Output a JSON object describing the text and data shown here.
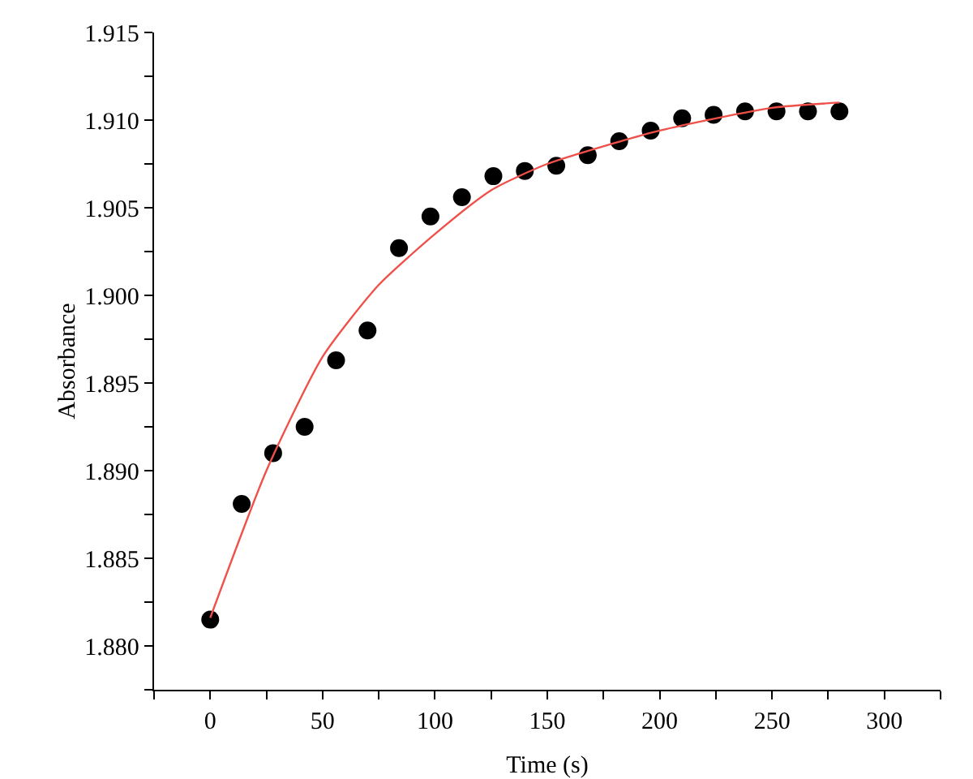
{
  "chart_data": {
    "type": "scatter",
    "xlabel": "Time (s)",
    "ylabel": "Absorbance",
    "xlim": [
      -25,
      325
    ],
    "ylim": [
      1.8775,
      1.915
    ],
    "xticks": [
      {
        "value": -25,
        "label": null
      },
      0,
      {
        "value": 25,
        "label": null
      },
      50,
      {
        "value": 75,
        "label": null
      },
      100,
      {
        "value": 125,
        "label": null
      },
      150,
      {
        "value": 175,
        "label": null
      },
      200,
      {
        "value": 225,
        "label": null
      },
      250,
      {
        "value": 275,
        "label": null
      },
      300,
      {
        "value": 325,
        "label": null
      }
    ],
    "yticks": [
      {
        "value": 1.8775,
        "label": null
      },
      {
        "value": 1.88,
        "label": "1.880"
      },
      {
        "value": 1.8825,
        "label": null
      },
      1.885,
      {
        "value": 1.8875,
        "label": null
      },
      {
        "value": 1.89,
        "label": "1.890"
      },
      {
        "value": 1.8925,
        "label": null
      },
      1.895,
      {
        "value": 1.8975,
        "label": null
      },
      {
        "value": 1.9,
        "label": "1.900"
      },
      {
        "value": 1.9025,
        "label": null
      },
      1.905,
      {
        "value": 1.9075,
        "label": null
      },
      {
        "value": 1.91,
        "label": "1.910"
      },
      {
        "value": 1.9125,
        "label": null
      },
      1.915
    ],
    "grid": false,
    "legend": false,
    "marker": "circle",
    "series": [
      {
        "color": "#000000",
        "x": [
          0,
          14,
          28,
          42,
          56,
          70,
          84,
          98,
          112,
          126,
          140,
          154,
          168,
          182,
          196,
          210,
          224,
          238,
          252,
          266,
          280
        ],
        "values": [
          1.8815,
          1.8881,
          1.891,
          1.8925,
          1.8963,
          1.898,
          1.9027,
          1.9045,
          1.9056,
          1.9068,
          1.9071,
          1.9074,
          1.908,
          1.9088,
          1.9094,
          1.9101,
          1.9103,
          1.9105,
          1.9105,
          1.9105,
          1.9105
        ]
      },
      {
        "type": "line",
        "color": "#f0504a",
        "line_style": "solid",
        "marker": "none",
        "x": [
          0,
          25,
          50,
          75,
          100,
          125,
          150,
          200,
          250,
          280
        ],
        "values": [
          1.8816,
          1.89,
          1.8965,
          1.9006,
          1.9035,
          1.906,
          1.9075,
          1.9094,
          1.9107,
          1.911
        ]
      }
    ]
  }
}
